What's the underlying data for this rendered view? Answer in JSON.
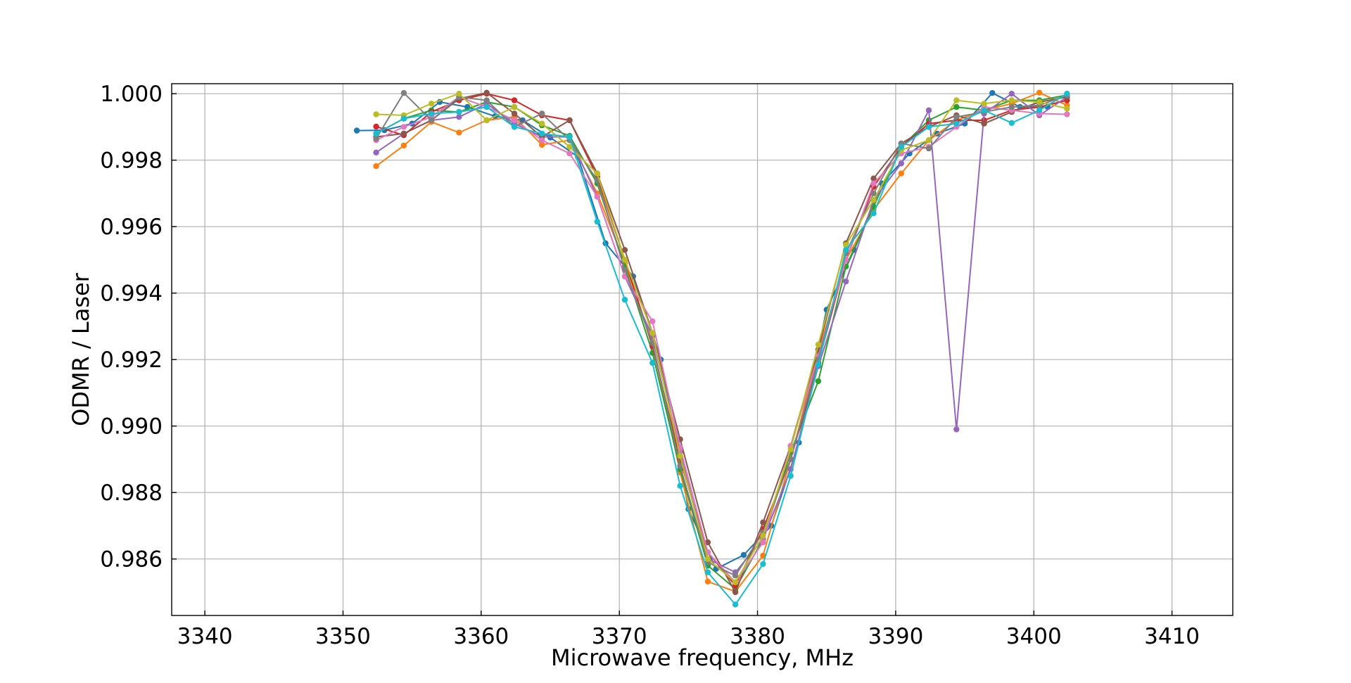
{
  "chart_data": {
    "type": "line",
    "title": "",
    "xlabel": "Microwave frequency, MHz",
    "ylabel": "ODMR / Laser",
    "xlim": [
      3337.6,
      3414.4
    ],
    "ylim": [
      0.9843,
      1.0003
    ],
    "xticks": [
      3340,
      3350,
      3360,
      3370,
      3380,
      3390,
      3400,
      3410
    ],
    "xtick_labels": [
      "3340",
      "3350",
      "3360",
      "3370",
      "3380",
      "3390",
      "3400",
      "3410"
    ],
    "yticks": [
      0.986,
      0.988,
      0.99,
      0.992,
      0.994,
      0.996,
      0.998,
      1.0
    ],
    "ytick_labels": [
      "0.986",
      "0.988",
      "0.990",
      "0.992",
      "0.994",
      "0.996",
      "0.998",
      "1.000"
    ],
    "grid": true,
    "markers": true,
    "series": [
      {
        "color": "#1f77b4",
        "x": [
          3351.0,
          3353.0,
          3355.0,
          3357.0,
          3359.0,
          3361.0,
          3363.0,
          3365.0,
          3367.0,
          3369.0,
          3371.0,
          3373.0,
          3375.0,
          3377.0,
          3379.0,
          3381.0,
          3383.0,
          3385.0,
          3387.0,
          3389.0,
          3391.0,
          3393.0,
          3395.0,
          3397.0,
          3399.0,
          3401.0
        ],
        "y": [
          0.99889,
          0.9989,
          0.9991,
          0.99975,
          0.9996,
          0.99932,
          0.9992,
          0.99868,
          0.9981,
          0.9955,
          0.9945,
          0.992,
          0.9875,
          0.9857,
          0.98612,
          0.987,
          0.9895,
          0.9935,
          0.9953,
          0.9973,
          0.9982,
          0.9988,
          0.9991,
          1.00002,
          0.9996,
          0.9996
        ]
      },
      {
        "color": "#ff7f0e",
        "x": [
          3352.4,
          3354.4,
          3356.4,
          3358.4,
          3360.4,
          3362.4,
          3364.4,
          3366.4,
          3368.4,
          3370.4,
          3372.4,
          3374.4,
          3376.4,
          3378.4,
          3380.4,
          3382.4,
          3384.4,
          3386.4,
          3388.4,
          3390.4,
          3392.4,
          3394.4,
          3396.4,
          3398.4,
          3400.4,
          3402.4
        ],
        "y": [
          0.99782,
          0.99844,
          0.99915,
          0.99883,
          0.9992,
          0.9993,
          0.99846,
          0.9986,
          0.997,
          0.9949,
          0.9925,
          0.9886,
          0.98532,
          0.98502,
          0.9861,
          0.989,
          0.9922,
          0.995,
          0.9965,
          0.9976,
          0.9986,
          0.9992,
          0.9995,
          0.9997,
          1.00003,
          0.99965
        ]
      },
      {
        "color": "#2ca02c",
        "x": [
          3352.4,
          3354.4,
          3356.4,
          3358.4,
          3360.4,
          3362.4,
          3364.4,
          3366.4,
          3368.4,
          3370.4,
          3372.4,
          3374.4,
          3376.4,
          3378.4,
          3380.4,
          3382.4,
          3384.4,
          3386.4,
          3388.4,
          3390.4,
          3392.4,
          3394.4,
          3396.4,
          3398.4,
          3400.4,
          3402.4
        ],
        "y": [
          0.9988,
          0.99925,
          0.9995,
          0.99945,
          0.99975,
          0.9996,
          0.99905,
          0.99873,
          0.9973,
          0.9948,
          0.9922,
          0.9887,
          0.9858,
          0.9851,
          0.9866,
          0.9892,
          0.99135,
          0.9948,
          0.9966,
          0.9984,
          0.9992,
          0.9996,
          0.9995,
          0.9998,
          0.9998,
          0.99996
        ]
      },
      {
        "color": "#d62728",
        "x": [
          3352.4,
          3354.4,
          3356.4,
          3358.4,
          3360.4,
          3362.4,
          3364.4,
          3366.4,
          3368.4,
          3370.4,
          3372.4,
          3374.4,
          3376.4,
          3378.4,
          3380.4,
          3382.4,
          3384.4,
          3386.4,
          3388.4,
          3390.4,
          3392.4,
          3394.4,
          3396.4,
          3398.4,
          3400.4,
          3402.4
        ],
        "y": [
          0.99901,
          0.99875,
          0.99945,
          0.9998,
          1.0,
          0.9998,
          0.99935,
          0.9992,
          0.9975,
          0.995,
          0.9924,
          0.989,
          0.9862,
          0.9852,
          0.9869,
          0.989,
          0.9919,
          0.995,
          0.9972,
          0.9984,
          0.9991,
          0.9992,
          0.9992,
          0.9995,
          0.9996,
          0.9998
        ]
      },
      {
        "color": "#9467bd",
        "x": [
          3352.4,
          3354.4,
          3356.4,
          3358.4,
          3360.4,
          3362.4,
          3364.4,
          3366.4,
          3368.4,
          3370.4,
          3372.4,
          3374.4,
          3376.4,
          3378.4,
          3380.4,
          3382.4,
          3384.4,
          3386.4,
          3388.4,
          3390.4,
          3392.4,
          3394.4,
          3396.4,
          3398.4,
          3400.4,
          3402.4
        ],
        "y": [
          0.99823,
          0.9988,
          0.9992,
          0.9993,
          0.9997,
          0.9991,
          0.9987,
          0.9987,
          0.9969,
          0.9945,
          0.9927,
          0.9892,
          0.986,
          0.9856,
          0.9866,
          0.9887,
          0.9918,
          0.99435,
          0.9968,
          0.9979,
          0.9995,
          0.9899,
          0.9994,
          1.0,
          0.99935,
          0.9999
        ]
      },
      {
        "color": "#8c564b",
        "x": [
          3352.4,
          3354.4,
          3356.4,
          3358.4,
          3360.4,
          3362.4,
          3364.4,
          3366.4,
          3368.4,
          3370.4,
          3372.4,
          3374.4,
          3376.4,
          3378.4,
          3380.4,
          3382.4,
          3384.4,
          3386.4,
          3388.4,
          3390.4,
          3392.4,
          3394.4,
          3396.4,
          3398.4,
          3400.4,
          3402.4
        ],
        "y": [
          0.9987,
          0.9988,
          0.9992,
          0.99985,
          1.00003,
          0.9994,
          0.9987,
          0.9992,
          0.9976,
          0.9953,
          0.9928,
          0.9896,
          0.9865,
          0.985,
          0.9871,
          0.9894,
          0.9923,
          0.9955,
          0.99745,
          0.9985,
          0.999,
          0.99935,
          0.9991,
          0.99945,
          0.99975,
          0.9999
        ]
      },
      {
        "color": "#e377c2",
        "x": [
          3352.4,
          3354.4,
          3356.4,
          3358.4,
          3360.4,
          3362.4,
          3364.4,
          3366.4,
          3368.4,
          3370.4,
          3372.4,
          3374.4,
          3376.4,
          3378.4,
          3380.4,
          3382.4,
          3384.4,
          3386.4,
          3388.4,
          3390.4,
          3392.4,
          3394.4,
          3396.4,
          3398.4,
          3400.4,
          3402.4
        ],
        "y": [
          0.9986,
          0.999,
          0.9993,
          0.9999,
          0.9996,
          0.9992,
          0.9986,
          0.9982,
          0.9969,
          0.9945,
          0.99315,
          0.98935,
          0.9862,
          0.9853,
          0.9865,
          0.9894,
          0.9921,
          0.995,
          0.9973,
          0.9982,
          0.9984,
          0.999,
          0.9996,
          0.9995,
          0.9994,
          0.99938
        ]
      },
      {
        "color": "#7f7f7f",
        "x": [
          3352.4,
          3354.4,
          3356.4,
          3358.4,
          3360.4,
          3362.4,
          3364.4,
          3366.4,
          3368.4,
          3370.4,
          3372.4,
          3374.4,
          3376.4,
          3378.4,
          3380.4,
          3382.4,
          3384.4,
          3386.4,
          3388.4,
          3390.4,
          3392.4,
          3394.4,
          3396.4,
          3398.4,
          3400.4,
          3402.4
        ],
        "y": [
          0.99865,
          1.00002,
          0.9992,
          0.9999,
          0.9998,
          0.999,
          0.9994,
          0.9986,
          0.9974,
          0.9947,
          0.9925,
          0.9888,
          0.9859,
          0.9855,
          0.9868,
          0.989,
          0.992,
          0.9952,
          0.997,
          0.9985,
          0.99835,
          0.9993,
          0.99945,
          0.9996,
          0.99965,
          0.99995
        ]
      },
      {
        "color": "#bcbd22",
        "x": [
          3352.4,
          3354.4,
          3356.4,
          3358.4,
          3360.4,
          3362.4,
          3364.4,
          3366.4,
          3368.4,
          3370.4,
          3372.4,
          3374.4,
          3376.4,
          3378.4,
          3380.4,
          3382.4,
          3384.4,
          3386.4,
          3388.4,
          3390.4,
          3392.4,
          3394.4,
          3396.4,
          3398.4,
          3400.4,
          3402.4
        ],
        "y": [
          0.99938,
          0.99935,
          0.9997,
          1.0,
          0.9992,
          0.9996,
          0.9991,
          0.9984,
          0.9976,
          0.995,
          0.9928,
          0.9891,
          0.986,
          0.9853,
          0.9867,
          0.9893,
          0.99245,
          0.99545,
          0.9968,
          0.9983,
          0.9986,
          0.9998,
          0.9997,
          0.9998,
          0.99975,
          0.99955
        ]
      },
      {
        "color": "#17becf",
        "x": [
          3352.4,
          3354.4,
          3356.4,
          3358.4,
          3360.4,
          3362.4,
          3364.4,
          3366.4,
          3368.4,
          3370.4,
          3372.4,
          3374.4,
          3376.4,
          3378.4,
          3380.4,
          3382.4,
          3384.4,
          3386.4,
          3388.4,
          3390.4,
          3392.4,
          3394.4,
          3396.4,
          3398.4,
          3400.4,
          3402.4
        ],
        "y": [
          0.9988,
          0.99925,
          0.9994,
          0.99945,
          0.9996,
          0.999,
          0.9988,
          0.9987,
          0.99615,
          0.9938,
          0.9919,
          0.9882,
          0.9856,
          0.98463,
          0.98585,
          0.9885,
          0.99185,
          0.9953,
          0.9964,
          0.9984,
          0.999,
          0.9991,
          0.9995,
          0.99912,
          0.9995,
          1.0
        ]
      }
    ]
  }
}
